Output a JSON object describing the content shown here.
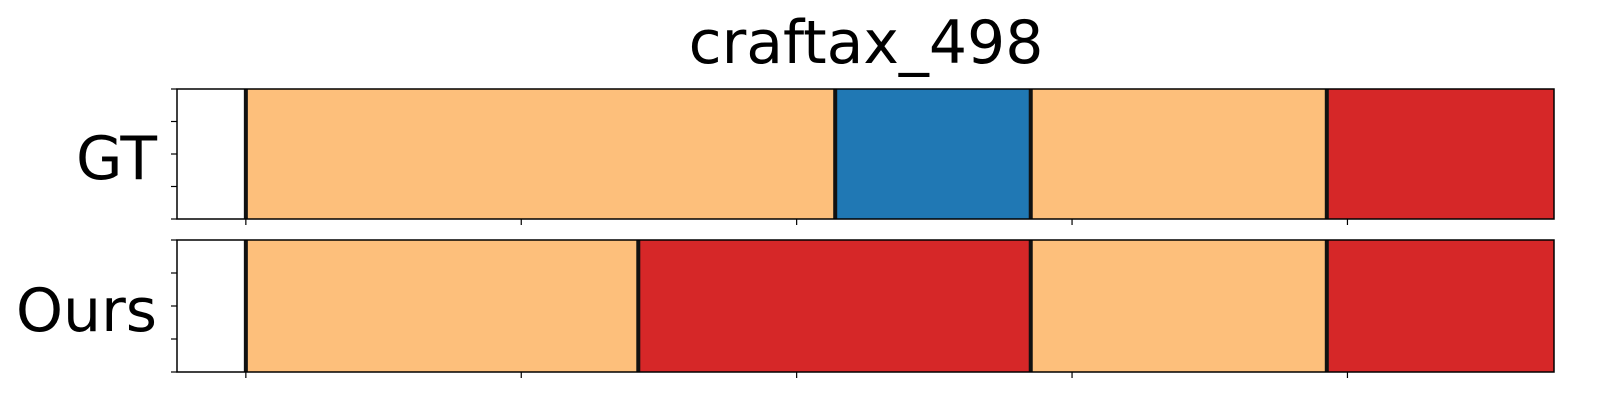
{
  "chart_data": {
    "type": "segmentation-timeline",
    "title": "craftax_498",
    "xlim": [
      0,
      10
    ],
    "x_ticks": [
      0.5,
      2.5,
      4.5,
      6.5,
      8.5,
      10.5
    ],
    "rows": [
      {
        "name": "GT",
        "segments": [
          {
            "start": 0.5,
            "end": 4.78,
            "color": "#fdbf7b"
          },
          {
            "start": 4.78,
            "end": 6.2,
            "color": "#2078b4"
          },
          {
            "start": 6.2,
            "end": 8.35,
            "color": "#fdbf7b"
          },
          {
            "start": 8.35,
            "end": 10.5,
            "color": "#d62728"
          }
        ],
        "boundaries": [
          0.5,
          4.78,
          6.2,
          8.35,
          10.5
        ]
      },
      {
        "name": "Ours",
        "segments": [
          {
            "start": 0.5,
            "end": 3.35,
            "color": "#fdbf7b"
          },
          {
            "start": 3.35,
            "end": 6.2,
            "color": "#d62728"
          },
          {
            "start": 6.2,
            "end": 8.35,
            "color": "#fdbf7b"
          },
          {
            "start": 8.35,
            "end": 10.5,
            "color": "#d62728"
          }
        ],
        "boundaries": [
          0.5,
          3.35,
          6.2,
          8.35,
          10.5
        ]
      }
    ]
  }
}
